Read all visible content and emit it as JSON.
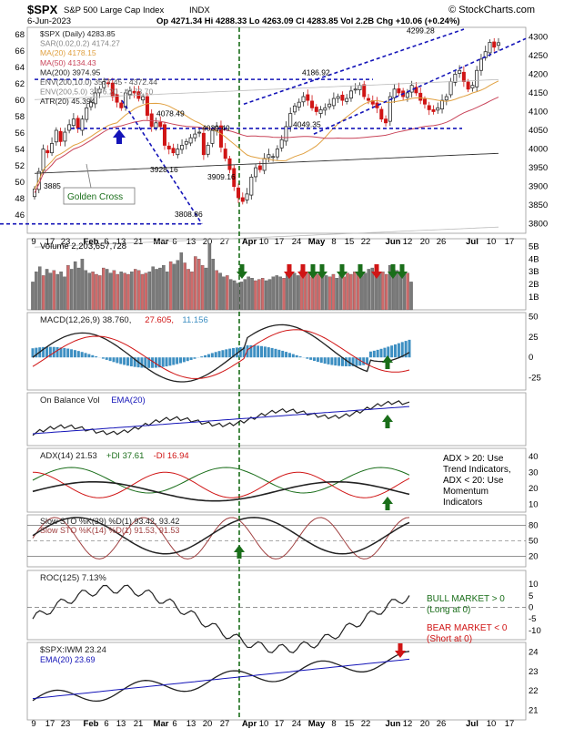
{
  "header": {
    "symbol": "$SPX",
    "name": "S&P 500 Large Cap Index",
    "exchange": "INDX",
    "brand": "© StockCharts.com",
    "date": "6-Jun-2023",
    "ohlc": "Op 4271.34  Hi 4288.33  Lo 4263.09  Cl 4283.85  Vol 2.2B  Chg +10.06 (+0.24%)"
  },
  "xaxis_labels": [
    "9",
    "17",
    "23",
    "Feb",
    "6",
    "13",
    "21",
    "Mar",
    "6",
    "13",
    "20",
    "27",
    "Apr",
    "10",
    "17",
    "24",
    "May",
    "8",
    "15",
    "22",
    "Jun",
    "12",
    "20",
    "26",
    "Jul",
    "10",
    "17"
  ],
  "xaxis_bold": [
    "Feb",
    "Mar",
    "Apr",
    "May",
    "Jun",
    "Jul"
  ],
  "colors": {
    "up": "#2b2b2b",
    "down": "#d01515",
    "volUp": "#7a7a7a",
    "volDown": "#cf6a6a",
    "blue": "#1414b8",
    "green": "#1a6e1a",
    "red": "#d01515",
    "orange": "#e0a040",
    "pink": "#c9455a",
    "histo": "#3d8fc2"
  },
  "chart_data": [
    {
      "type": "candlestick",
      "title": "$SPX (Daily) 4283.85",
      "legend": [
        {
          "text": "$SPX (Daily) 4283.85",
          "color": "#222222"
        },
        {
          "text": "SAR(0.02,0.2) 4174.27",
          "color": "#888888"
        },
        {
          "text": "MA(20) 4178.15",
          "color": "#e0a040"
        },
        {
          "text": "MA(50) 4134.43",
          "color": "#c9455a"
        },
        {
          "text": "MA(200) 3974.95",
          "color": "#222222"
        },
        {
          "text": "ENV(200,10.0) 3577.45 - 4372.44",
          "color": "#555555"
        },
        {
          "text": "ENV(200,5.0) 3776.20 - 4173.70",
          "color": "#888888"
        },
        {
          "text": "ATR(20) 45.394",
          "color": "#222222"
        }
      ],
      "y_right_ticks": [
        3800,
        3850,
        3900,
        3950,
        4000,
        4050,
        4100,
        4150,
        4200,
        4250,
        4300
      ],
      "y_left_ticks": [
        46,
        48,
        50,
        52,
        54,
        56,
        58,
        60,
        62,
        64,
        66,
        68
      ],
      "price_range": [
        3775,
        4325
      ],
      "closes": [
        3893,
        3940,
        4000,
        3990,
        4015,
        4050,
        4020,
        4045,
        4065,
        4080,
        4055,
        4080,
        4110,
        4125,
        4150,
        4160,
        4180,
        4175,
        4140,
        4125,
        4110,
        4150,
        4155,
        4150,
        4135,
        4140,
        4090,
        4060,
        4070,
        4060,
        4010,
        4000,
        3990,
        4000,
        4010,
        4020,
        4030,
        4040,
        4045,
        3985,
        4010,
        4050,
        4060,
        4005,
        3975,
        3945,
        3900,
        3870,
        3860,
        3880,
        3925,
        3950,
        3945,
        3975,
        3985,
        3980,
        4000,
        4025,
        4060,
        4095,
        4115,
        4125,
        4140,
        4130,
        4110,
        4100,
        4105,
        4110,
        4120,
        4135,
        4140,
        4130,
        4135,
        4155,
        4160,
        4170,
        4140,
        4130,
        4120,
        4110,
        4080,
        4070,
        4140,
        4160,
        4150,
        4140,
        4150,
        4170,
        4150,
        4130,
        4120,
        4105,
        4100,
        4110,
        4130,
        4140,
        4180,
        4200,
        4210,
        4180,
        4160,
        4170,
        4210,
        4240,
        4260,
        4285,
        4272,
        4284
      ],
      "annotations": [
        {
          "text": "4299.28",
          "price": 4299.28
        },
        {
          "text": "4186.92",
          "price": 4186.92
        },
        {
          "text": "4078.49",
          "price": 4078.49
        },
        {
          "text": "4039.49",
          "price": 4039.49
        },
        {
          "text": "4049.35",
          "price": 4049.35
        },
        {
          "text": "3928.16",
          "price": 3928.16
        },
        {
          "text": "3909.16",
          "price": 3909.16
        },
        {
          "text": "3885",
          "price": 3885
        },
        {
          "text": "3808.86",
          "price": 3808.86
        }
      ],
      "horizontal_lines": [
        4186,
        4055,
        3800
      ],
      "note": "Golden Cross"
    },
    {
      "type": "bar",
      "title": "Volume 2,203,657,728",
      "y_ticks": [
        "1B",
        "2B",
        "3B",
        "4B",
        "5B"
      ],
      "values": [
        2.2,
        3.0,
        3.4,
        2.7,
        3.2,
        2.9,
        3.1,
        2.8,
        3.0,
        2.6,
        3.5,
        3.2,
        3.8,
        3.3,
        4.0,
        3.1,
        2.9,
        3.0,
        2.8,
        2.7,
        3.3,
        3.2,
        2.9,
        3.1,
        2.8,
        3.0,
        2.9,
        2.8,
        3.0,
        3.2,
        3.1,
        2.8,
        2.9,
        3.0,
        3.4,
        3.2,
        3.3,
        3.5,
        3.0,
        3.8,
        3.6,
        3.9,
        4.5,
        3.7,
        3.2,
        3.0,
        4.2,
        4.0,
        3.5,
        3.3,
        5.2,
        4.0,
        3.1,
        2.9,
        2.6,
        2.7,
        2.4,
        2.3,
        2.1,
        2.2,
        2.4,
        2.6,
        2.5,
        2.3,
        2.4,
        2.5,
        2.3,
        2.4,
        2.6,
        2.7,
        2.6,
        2.5,
        2.8,
        3.0,
        2.9,
        2.7,
        3.1,
        3.0,
        2.9,
        2.6,
        3.0,
        2.8,
        2.9,
        2.7,
        2.6,
        2.8,
        2.5,
        2.7,
        2.6,
        2.9,
        2.8,
        3.0,
        2.8,
        2.7,
        2.9,
        3.2,
        3.3,
        3.0,
        2.9,
        3.0,
        2.8,
        3.5,
        3.2,
        3.1,
        2.9,
        2.8,
        2.9,
        2.2
      ]
    },
    {
      "type": "line",
      "title": "MACD(12,26,9) 38.760, 27.605, 11.156",
      "legend": [
        {
          "text": "MACD(12,26,9) 38.760,",
          "color": "#222222"
        },
        {
          "text": "27.605,",
          "color": "#d01515"
        },
        {
          "text": "11.156",
          "color": "#3d8fc2"
        }
      ],
      "y_ticks": [
        50,
        25,
        0,
        -25
      ]
    },
    {
      "type": "line",
      "title": "On Balance Vol",
      "legend": [
        {
          "text": "On Balance Vol",
          "color": "#222222"
        },
        {
          "text": "EMA(20)",
          "color": "#1414b8"
        }
      ]
    },
    {
      "type": "line",
      "title": "ADX(14) 21.53 +DI 37.61 -DI 16.94",
      "legend": [
        {
          "text": "ADX(14) 21.53",
          "color": "#222222"
        },
        {
          "text": "+DI 37.61",
          "color": "#1a6e1a"
        },
        {
          "text": "-DI 16.94",
          "color": "#d01515"
        }
      ],
      "y_ticks": [
        10,
        20,
        30,
        40
      ],
      "note_lines": [
        "ADX > 20: Use",
        "Trend Indicators,",
        "ADX < 20: Use",
        "Momentum",
        "Indicators"
      ]
    },
    {
      "type": "line",
      "title": "Slow STO",
      "legend": [
        {
          "text": "Slow STO %K(39) %D(1) 93.42, 93.42",
          "color": "#222222"
        },
        {
          "text": "Slow STO %K(14) %D(1) 91.53, 91.53",
          "color": "#a04040"
        }
      ],
      "y_ticks": [
        20,
        50,
        80
      ]
    },
    {
      "type": "line",
      "title": "ROC(125) 7.13%",
      "legend": [
        {
          "text": "ROC(125) 7.13%",
          "color": "#222222"
        }
      ],
      "y_ticks": [
        -10,
        -5,
        0,
        5,
        10
      ],
      "bull_lines": [
        "BULL MARKET > 0",
        "(Long at 0)"
      ],
      "bear_lines": [
        "BEAR MARKET < 0",
        "(Short at 0)"
      ]
    },
    {
      "type": "line",
      "title": "$SPX:IWM 23.24",
      "legend": [
        {
          "text": "$SPX:IWM 23.24",
          "color": "#222222"
        },
        {
          "text": "EMA(20) 23.69",
          "color": "#1414b8"
        }
      ],
      "y_ticks": [
        21,
        22,
        23,
        24
      ]
    }
  ]
}
